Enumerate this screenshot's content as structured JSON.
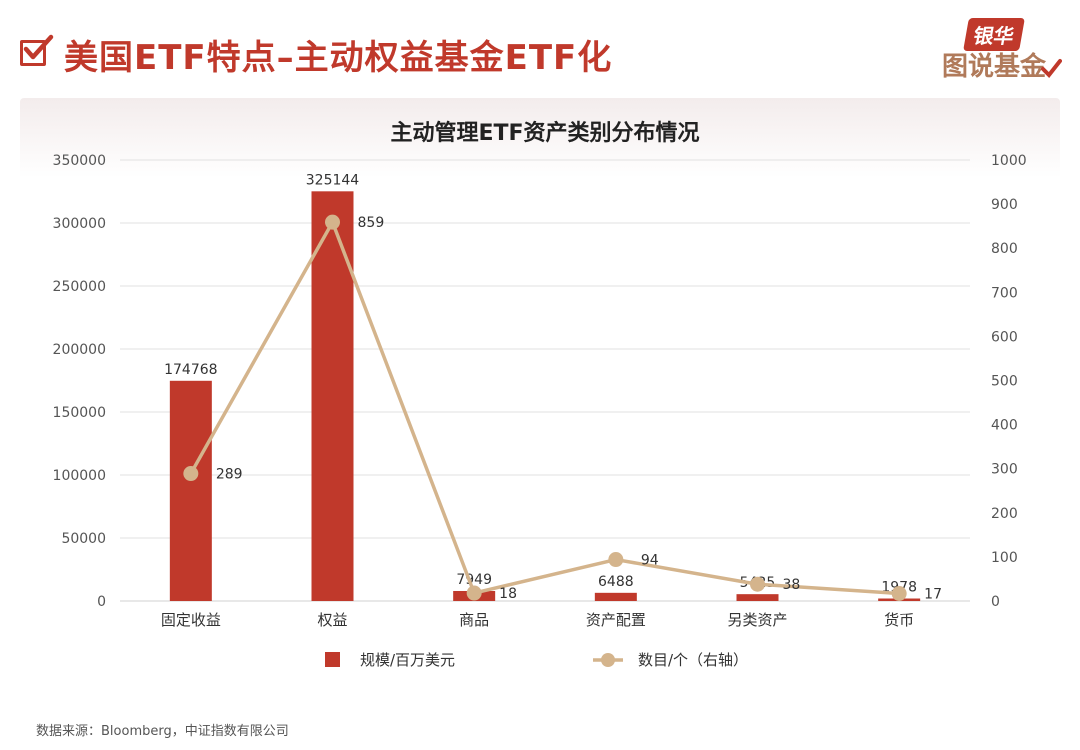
{
  "header": {
    "title": "美国ETF特点–主动权益基金ETF化",
    "logo_top": "银华",
    "logo_bottom": "图说基金"
  },
  "colors": {
    "accent": "#c0392b",
    "bar": "#c0392b",
    "line": "#d4b48c"
  },
  "chart_data": {
    "type": "bar",
    "title": "主动管理ETF资产类别分布情况",
    "categories": [
      "固定收益",
      "权益",
      "商品",
      "资产配置",
      "另类资产",
      "货币"
    ],
    "series": [
      {
        "name": "规模/百万美元",
        "type": "bar",
        "axis": "left",
        "values": [
          174768,
          325144,
          7949,
          6488,
          5425,
          1978
        ]
      },
      {
        "name": "数目/个（右轴）",
        "type": "line",
        "axis": "right",
        "values": [
          289,
          859,
          18,
          94,
          38,
          17
        ]
      }
    ],
    "y_left": {
      "min": 0,
      "max": 350000,
      "ticks": [
        "0",
        "50000",
        "100000",
        "150000",
        "200000",
        "250000",
        "300000",
        "350000"
      ]
    },
    "y_right": {
      "min": 0,
      "max": 1000,
      "ticks": [
        "0",
        "100",
        "200",
        "300",
        "400",
        "500",
        "600",
        "700",
        "800",
        "900",
        "1000"
      ]
    },
    "grid": true,
    "legend": "bottom"
  },
  "source_text": "数据来源：Bloomberg，中证指数有限公司"
}
